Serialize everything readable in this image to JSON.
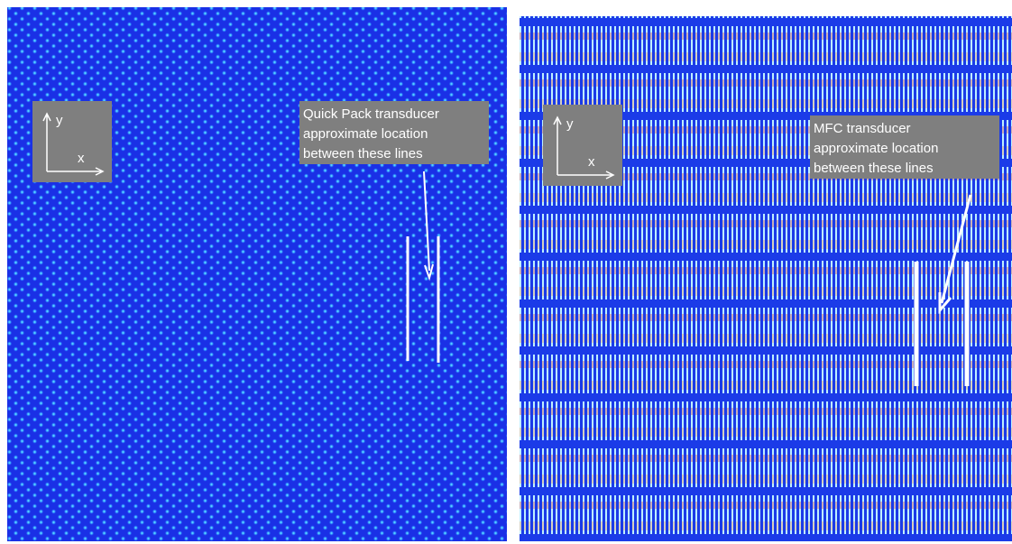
{
  "panels": [
    {
      "axes": {
        "y": "y",
        "x": "x"
      },
      "label": [
        "Quick Pack transducer",
        "approximate location",
        "between these lines"
      ]
    },
    {
      "axes": {
        "y": "y",
        "x": "x"
      },
      "label": [
        "MFC transducer",
        "approximate location",
        "between these lines"
      ]
    }
  ]
}
